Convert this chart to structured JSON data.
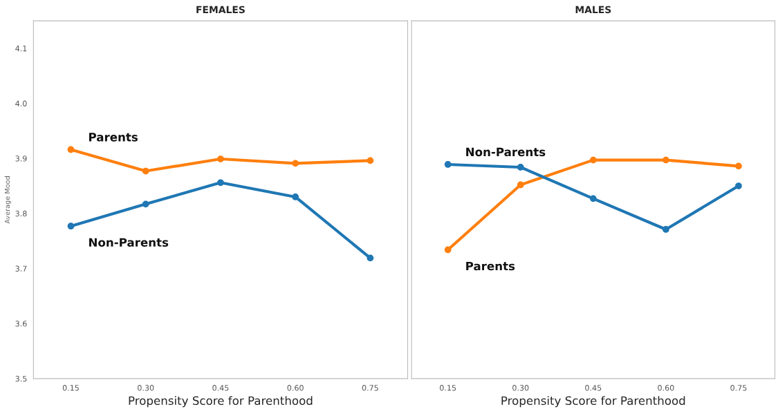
{
  "chart_data": [
    {
      "type": "line",
      "title": "FEMALES",
      "xlabel": "Propensity Score for Parenthood",
      "ylabel": "Average Mood",
      "categories": [
        "0.15",
        "0.30",
        "0.45",
        "0.60",
        "0.75"
      ],
      "ylim": [
        3.5,
        4.15
      ],
      "yticks": [
        3.5,
        3.6,
        3.7,
        3.8,
        3.9,
        {
          "value": 4,
          "label": "4.0"
        },
        4.1
      ],
      "marker": "circle",
      "line_style": "solid",
      "grid": false,
      "legend": false,
      "series": [
        {
          "name": "Parents",
          "color": "#ff7f0e",
          "values": [
            3.916,
            3.877,
            3.899,
            3.891,
            3.896
          ]
        },
        {
          "name": "Non-Parents",
          "color": "#1f77b4",
          "values": [
            3.777,
            3.817,
            3.856,
            3.83,
            3.719
          ]
        }
      ]
    },
    {
      "type": "line",
      "title": "MALES",
      "xlabel": "Propensity Score for Parenthood",
      "categories": [
        "0.15",
        "0.30",
        "0.45",
        "0.60",
        "0.75"
      ],
      "ylim": [
        3.5,
        4.15
      ],
      "yticks": [
        3.5,
        3.6,
        3.7,
        3.8,
        3.9,
        4,
        4.1
      ],
      "tick_labels": "x",
      "marker": "circle",
      "line_style": "solid",
      "grid": false,
      "legend": false,
      "series": [
        {
          "name": "Parents",
          "color": "#ff7f0e",
          "values": [
            3.734,
            3.852,
            3.897,
            3.897,
            3.886
          ]
        },
        {
          "name": "Non-Parents",
          "color": "#1f77b4",
          "values": [
            3.889,
            3.884,
            3.827,
            3.771,
            3.85
          ]
        }
      ]
    }
  ]
}
